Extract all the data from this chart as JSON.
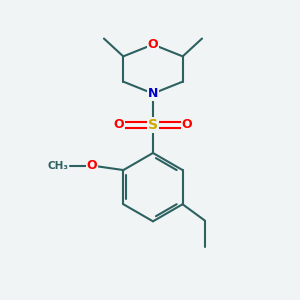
{
  "background_color": "#f0f4f4",
  "bond_color": "#2d6060",
  "line_width": 1.5,
  "atom_colors": {
    "O": "#ff0000",
    "N": "#0000cc",
    "S": "#ccaa00",
    "C": "#2d6060"
  },
  "font_size": 9,
  "label_fontsize": 8
}
